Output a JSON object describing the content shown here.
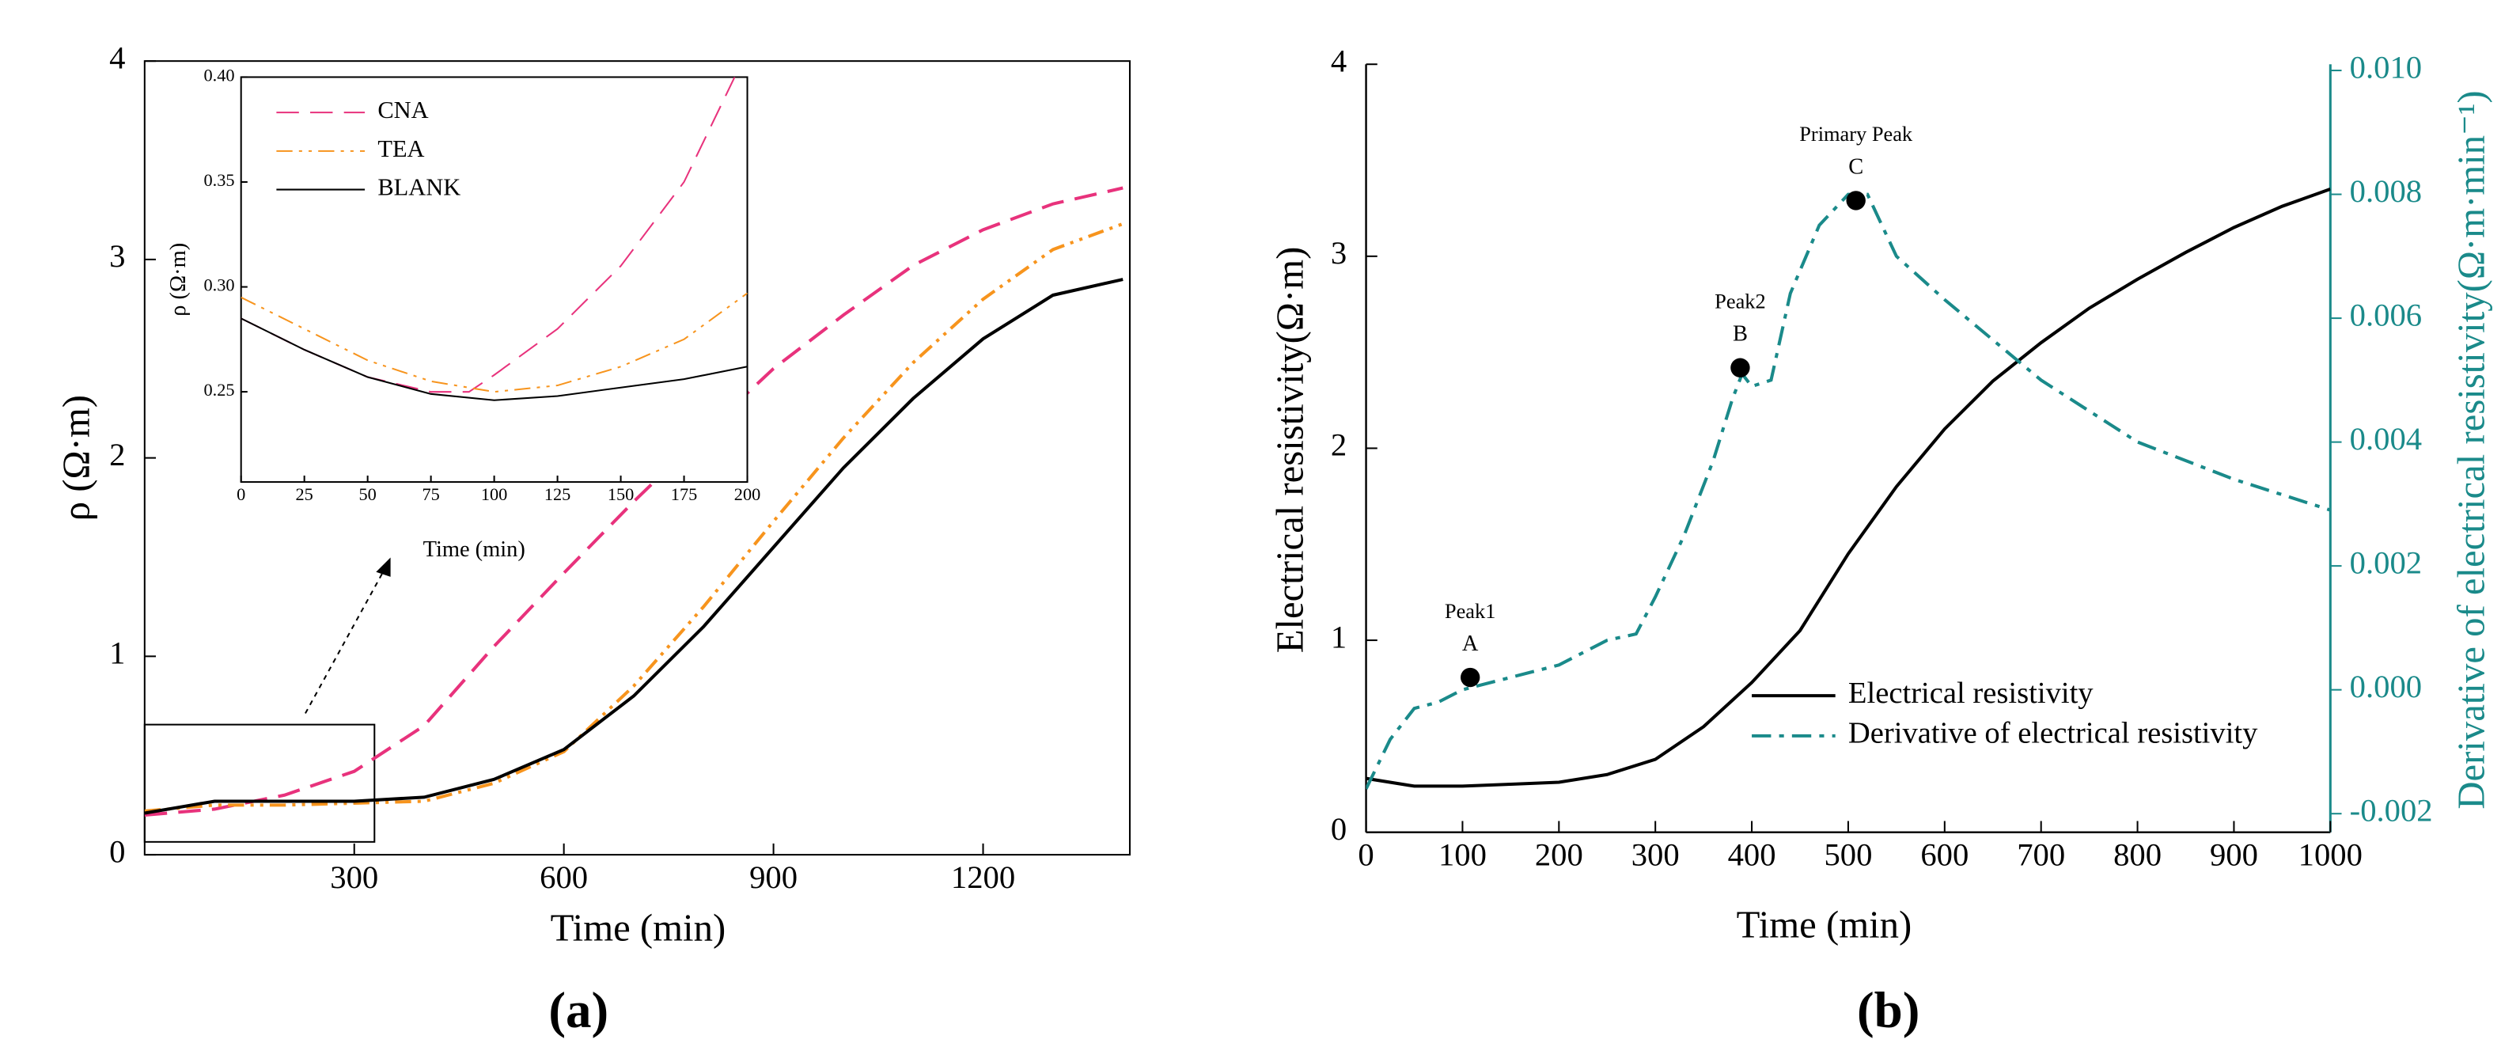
{
  "chart_data": [
    {
      "type": "line",
      "panel_label": "(a)",
      "xlabel": "Time (min)",
      "ylabel": "ρ (Ω·m)",
      "xlim": [
        0,
        1410
      ],
      "xticks": [
        300,
        600,
        900,
        1200
      ],
      "ylim": [
        0,
        4
      ],
      "yticks": [
        0,
        1,
        2,
        3,
        4
      ],
      "x": [
        0,
        100,
        200,
        300,
        400,
        500,
        600,
        700,
        800,
        900,
        1000,
        1100,
        1200,
        1300,
        1400
      ],
      "series": [
        {
          "color": "#e8327c",
          "linestyle": "dashed",
          "values": [
            0.2,
            0.23,
            0.3,
            0.42,
            0.65,
            1.05,
            1.42,
            1.78,
            2.12,
            2.45,
            2.72,
            2.97,
            3.15,
            3.28,
            3.36
          ]
        },
        {
          "color": "#f7941d",
          "linestyle": "dashdotdot",
          "values": [
            0.22,
            0.25,
            0.25,
            0.26,
            0.27,
            0.36,
            0.52,
            0.85,
            1.25,
            1.68,
            2.1,
            2.48,
            2.8,
            3.05,
            3.18
          ]
        },
        {
          "color": "#000000",
          "linestyle": "solid",
          "values": [
            0.21,
            0.27,
            0.27,
            0.27,
            0.29,
            0.38,
            0.53,
            0.8,
            1.15,
            1.55,
            1.95,
            2.3,
            2.6,
            2.82,
            2.9
          ]
        }
      ]
    },
    {
      "type": "line",
      "xlabel": "Time (min)",
      "ylabel": "ρ (Ω·m)",
      "legend": "upper left",
      "xlim": [
        0,
        200
      ],
      "xticks": [
        0,
        25,
        50,
        75,
        100,
        125,
        150,
        175,
        200
      ],
      "ylim": [
        0.207,
        0.4
      ],
      "yticks": [
        0.25,
        {
          "value": 0.3,
          "label": "0.30"
        },
        0.35,
        {
          "value": 0.4,
          "label": "0.40"
        }
      ],
      "x": [
        0,
        25,
        50,
        75,
        90,
        100,
        125,
        150,
        175,
        195
      ],
      "series": [
        {
          "name": "CNA",
          "color": "#e8327c",
          "linestyle": "dashed",
          "values": [
            0.285,
            0.27,
            0.257,
            0.25,
            0.25,
            0.258,
            0.28,
            0.31,
            0.35,
            0.4
          ]
        },
        {
          "name": "TEA",
          "color": "#f7941d",
          "linestyle": "dashdotdot",
          "x": [
            0,
            25,
            50,
            75,
            100,
            125,
            150,
            175,
            200
          ],
          "values": [
            0.295,
            0.28,
            0.265,
            0.255,
            0.25,
            0.253,
            0.262,
            0.275,
            0.297
          ]
        },
        {
          "name": "BLANK",
          "color": "#000000",
          "linestyle": "solid",
          "x": [
            0,
            25,
            50,
            75,
            100,
            125,
            150,
            175,
            200
          ],
          "values": [
            0.285,
            0.27,
            0.257,
            0.249,
            0.246,
            0.248,
            0.252,
            0.256,
            0.262
          ]
        }
      ]
    },
    {
      "type": "line",
      "panel_label": "(b)",
      "xlabel": "Time (min)",
      "ylabel": "Electrical resistivity(Ω·m)",
      "y2label": "Derivative of electrical resistivity(Ω·m·min⁻¹)",
      "legend": "lower right",
      "xlim": [
        0,
        1000
      ],
      "xticks": [
        0,
        100,
        200,
        300,
        400,
        500,
        600,
        700,
        800,
        900,
        1000
      ],
      "ylim": [
        0,
        4
      ],
      "yticks": [
        0,
        1,
        2,
        3,
        4
      ],
      "y2lim": [
        -0.0023,
        0.0101
      ],
      "y2ticks": [
        -0.002,
        {
          "value": 0,
          "label": "0.000"
        },
        0.002,
        0.004,
        0.006,
        0.008,
        {
          "value": 0.01,
          "label": "0.010"
        }
      ],
      "series": [
        {
          "name": "Electrical resistivity",
          "color": "#000000",
          "linestyle": "solid",
          "x": [
            0,
            50,
            100,
            150,
            200,
            250,
            300,
            350,
            400,
            450,
            500,
            550,
            600,
            650,
            700,
            750,
            800,
            850,
            900,
            950,
            1000
          ],
          "values": [
            0.28,
            0.24,
            0.24,
            0.25,
            0.26,
            0.3,
            0.38,
            0.55,
            0.78,
            1.05,
            1.45,
            1.8,
            2.1,
            2.35,
            2.55,
            2.73,
            2.88,
            3.02,
            3.15,
            3.26,
            3.35
          ]
        },
        {
          "name": "Derivative of electrical resistivity",
          "color": "#1a8a8a",
          "linestyle": "dashdot",
          "axis": "y2",
          "x": [
            0,
            25,
            50,
            75,
            100,
            150,
            200,
            250,
            280,
            300,
            330,
            360,
            380,
            390,
            400,
            420,
            440,
            470,
            500,
            520,
            550,
            600,
            700,
            800,
            900,
            1000
          ],
          "values": [
            -0.0016,
            -0.0008,
            -0.0003,
            -0.0002,
            0.0,
            0.0002,
            0.0004,
            0.0008,
            0.0009,
            0.0015,
            0.0025,
            0.0037,
            0.0047,
            0.0051,
            0.0049,
            0.005,
            0.0064,
            0.0075,
            0.008,
            0.008,
            0.007,
            0.0063,
            0.005,
            0.004,
            0.0034,
            0.0029
          ]
        }
      ],
      "markers": {
        "axis": "y2",
        "color": "#000000",
        "x": [
          108,
          388,
          508
        ],
        "values": [
          0.0002,
          0.0052,
          0.0079
        ],
        "labels": [
          "Peak1",
          "Peak2",
          "Primary Peak"
        ],
        "letters": [
          "A",
          "B",
          "C"
        ]
      }
    }
  ]
}
